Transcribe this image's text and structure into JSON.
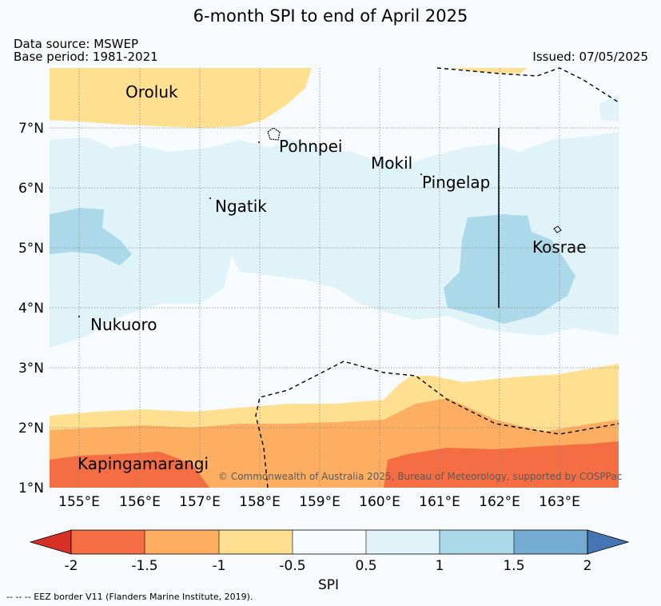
{
  "header": {
    "title": "6-month SPI to end of April 2025",
    "data_source": "Data source: MSWEP",
    "base_period": "Base period: 1981-2021",
    "issued": "Issued: 07/05/2025"
  },
  "map": {
    "lon_range": [
      154.5,
      164
    ],
    "lat_range": [
      1,
      8
    ],
    "lon_ticks": [
      "155°E",
      "156°E",
      "157°E",
      "158°E",
      "159°E",
      "160°E",
      "161°E",
      "162°E",
      "163°E"
    ],
    "lat_ticks": [
      "1°N",
      "2°N",
      "3°N",
      "4°N",
      "5°N",
      "6°N",
      "7°N"
    ],
    "places": {
      "oroluk": "Oroluk",
      "pohnpei": "Pohnpei",
      "mokil": "Mokil",
      "pingelap": "Pingelap",
      "ngatik": "Ngatik",
      "kosrae": "Kosrae",
      "nukuoro": "Nukuoro",
      "kapingamarangi": "Kapingamarangi"
    },
    "copyright": "© Commonwealth of Australia 2025, Bureau of Meteorology, supported by COSPPac"
  },
  "legend": {
    "label": "SPI",
    "ticks": [
      "-2",
      "-1.5",
      "-1",
      "-0.5",
      "0.5",
      "1",
      "1.5",
      "2"
    ],
    "colors": [
      "#d73027",
      "#f46d43",
      "#fdae61",
      "#fee090",
      "#f7fbfd",
      "#e0f3f8",
      "#abd9e9",
      "#74add1",
      "#4575b4"
    ],
    "eez_note": "--  --  -- EEZ border V11 (Flanders Marine Institute, 2019)."
  }
}
